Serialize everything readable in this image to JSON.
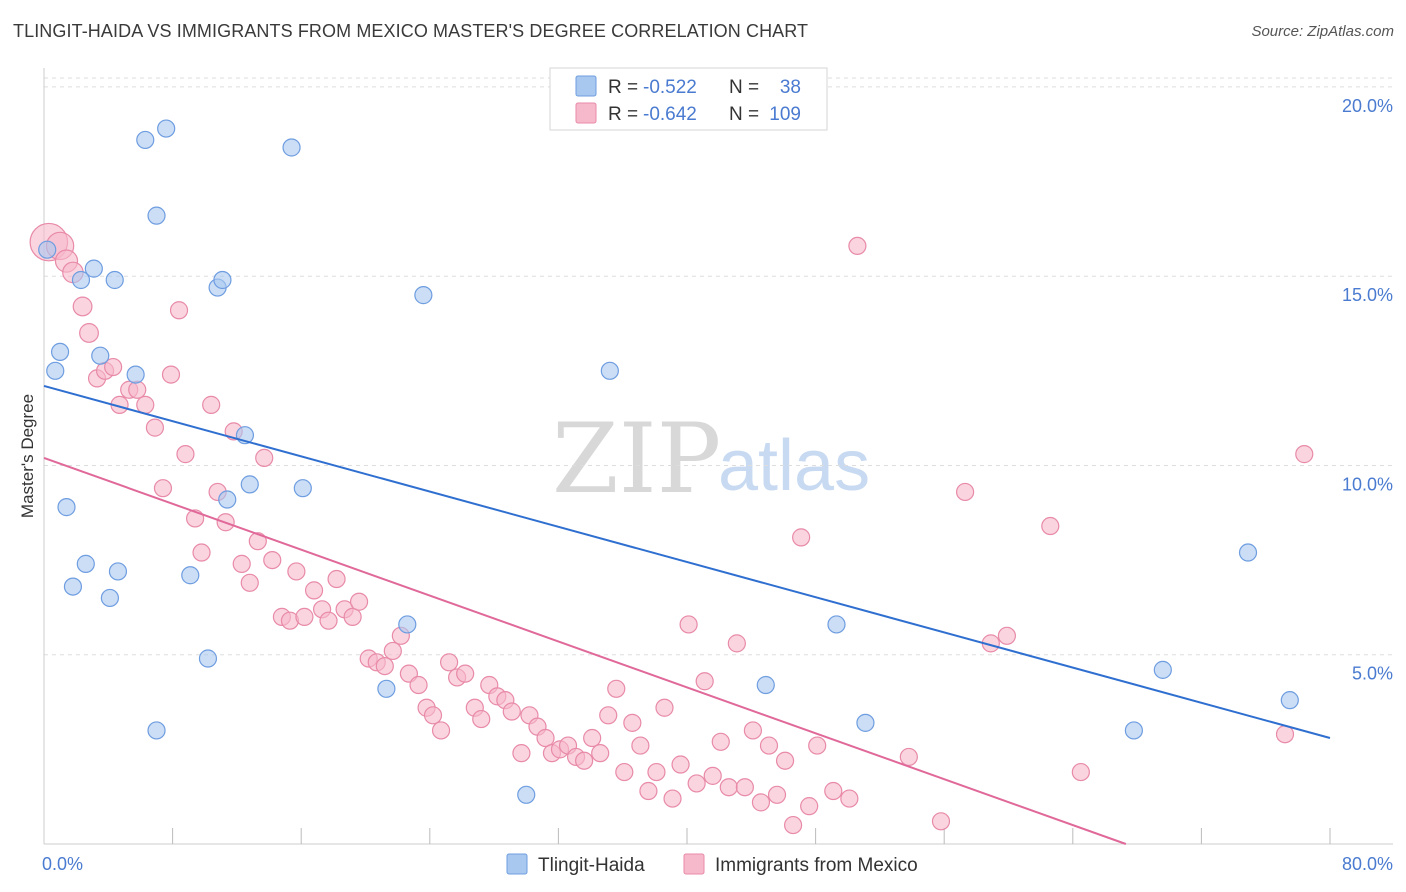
{
  "title": "TLINGIT-HAIDA VS IMMIGRANTS FROM MEXICO MASTER'S DEGREE CORRELATION CHART",
  "source": "Source: ZipAtlas.com",
  "watermark": {
    "zip": "ZIP",
    "atlas": "atlas"
  },
  "colors": {
    "blue_fill": "#a9c8f0",
    "blue_stroke": "#6e9de0",
    "blue_line": "#2f6fd0",
    "pink_fill": "#f6b9cc",
    "pink_stroke": "#e88aa8",
    "pink_line": "#e0699a",
    "accent_text": "#4a7bd0"
  },
  "legend": {
    "rows": [
      {
        "r_label": "R =",
        "r_value": "-0.522",
        "n_label": "N =",
        "n_value": "38",
        "series": "blue"
      },
      {
        "r_label": "R =",
        "r_value": "-0.642",
        "n_label": "N =",
        "n_value": "109",
        "series": "pink"
      }
    ]
  },
  "bottom_legend": [
    "Tlingit-Haida",
    "Immigrants from Mexico"
  ],
  "chart_data": {
    "type": "scatter",
    "xlabel": "",
    "ylabel": "Master's Degree",
    "xlim": [
      0,
      80
    ],
    "ylim": [
      0,
      20.5
    ],
    "x_tick_labels": [
      {
        "value": 0,
        "label": "0.0%"
      },
      {
        "value": 80,
        "label": "80.0%"
      }
    ],
    "y_tick_labels": [
      {
        "value": 5,
        "label": "5.0%"
      },
      {
        "value": 10,
        "label": "10.0%"
      },
      {
        "value": 15,
        "label": "15.0%"
      },
      {
        "value": 20,
        "label": "20.0%"
      }
    ],
    "grid": "horizontal dashed",
    "legend_position": "top-center",
    "series": [
      {
        "name": "Tlingit-Haida",
        "color": "#a9c8f0",
        "trend": {
          "x": [
            0,
            80
          ],
          "y": [
            12.1,
            2.8
          ]
        },
        "points": [
          [
            0.2,
            15.7,
            1.0
          ],
          [
            0.7,
            12.5,
            1.0
          ],
          [
            1.0,
            13.0,
            1.0
          ],
          [
            1.4,
            8.9,
            1.0
          ],
          [
            1.8,
            6.8,
            1.0
          ],
          [
            2.3,
            14.9,
            1.0
          ],
          [
            2.6,
            7.4,
            1.0
          ],
          [
            3.1,
            15.2,
            1.0
          ],
          [
            3.5,
            12.9,
            1.0
          ],
          [
            4.1,
            6.5,
            1.0
          ],
          [
            4.6,
            7.2,
            1.0
          ],
          [
            4.4,
            14.9,
            1.0
          ],
          [
            5.7,
            12.4,
            1.0
          ],
          [
            6.3,
            18.6,
            1.0
          ],
          [
            7.0,
            16.6,
            1.0
          ],
          [
            7.6,
            18.9,
            1.0
          ],
          [
            7.0,
            3.0,
            1.0
          ],
          [
            9.1,
            7.1,
            1.0
          ],
          [
            10.2,
            4.9,
            1.0
          ],
          [
            10.8,
            14.7,
            1.0
          ],
          [
            11.1,
            14.9,
            1.0
          ],
          [
            11.4,
            9.1,
            1.0
          ],
          [
            12.5,
            10.8,
            1.0
          ],
          [
            12.8,
            9.5,
            1.0
          ],
          [
            15.4,
            18.4,
            1.0
          ],
          [
            16.1,
            9.4,
            1.0
          ],
          [
            21.3,
            4.1,
            1.0
          ],
          [
            22.6,
            5.8,
            1.0
          ],
          [
            23.6,
            14.5,
            1.0
          ],
          [
            30.0,
            1.3,
            1.0
          ],
          [
            35.2,
            12.5,
            1.0
          ],
          [
            44.9,
            4.2,
            1.0
          ],
          [
            49.3,
            5.8,
            1.0
          ],
          [
            51.1,
            3.2,
            1.0
          ],
          [
            67.8,
            3.0,
            1.0
          ],
          [
            69.6,
            4.6,
            1.0
          ],
          [
            74.9,
            7.7,
            1.0
          ],
          [
            77.5,
            3.8,
            1.0
          ]
        ]
      },
      {
        "name": "Immigrants from Mexico",
        "color": "#f6b9cc",
        "trend": {
          "x": [
            0,
            67.3
          ],
          "y": [
            10.2,
            0
          ]
        },
        "points": [
          [
            0.3,
            15.9,
            2.2
          ],
          [
            1.0,
            15.8,
            1.6
          ],
          [
            1.4,
            15.4,
            1.3
          ],
          [
            1.8,
            15.1,
            1.2
          ],
          [
            2.4,
            14.2,
            1.1
          ],
          [
            2.8,
            13.5,
            1.1
          ],
          [
            3.3,
            12.3,
            1.0
          ],
          [
            3.8,
            12.5,
            1.0
          ],
          [
            4.3,
            12.6,
            1.0
          ],
          [
            4.7,
            11.6,
            1.0
          ],
          [
            5.3,
            12.0,
            1.0
          ],
          [
            5.8,
            12.0,
            1.0
          ],
          [
            6.3,
            11.6,
            1.0
          ],
          [
            6.9,
            11.0,
            1.0
          ],
          [
            7.4,
            9.4,
            1.0
          ],
          [
            7.9,
            12.4,
            1.0
          ],
          [
            8.4,
            14.1,
            1.0
          ],
          [
            8.8,
            10.3,
            1.0
          ],
          [
            9.4,
            8.6,
            1.0
          ],
          [
            9.8,
            7.7,
            1.0
          ],
          [
            10.4,
            11.6,
            1.0
          ],
          [
            10.8,
            9.3,
            1.0
          ],
          [
            11.3,
            8.5,
            1.0
          ],
          [
            11.8,
            10.9,
            1.0
          ],
          [
            12.3,
            7.4,
            1.0
          ],
          [
            12.8,
            6.9,
            1.0
          ],
          [
            13.3,
            8.0,
            1.0
          ],
          [
            13.7,
            10.2,
            1.0
          ],
          [
            14.2,
            7.5,
            1.0
          ],
          [
            14.8,
            6.0,
            1.0
          ],
          [
            15.3,
            5.9,
            1.0
          ],
          [
            15.7,
            7.2,
            1.0
          ],
          [
            16.2,
            6.0,
            1.0
          ],
          [
            16.8,
            6.7,
            1.0
          ],
          [
            17.3,
            6.2,
            1.0
          ],
          [
            17.7,
            5.9,
            1.0
          ],
          [
            18.2,
            7.0,
            1.0
          ],
          [
            18.7,
            6.2,
            1.0
          ],
          [
            19.2,
            6.0,
            1.0
          ],
          [
            19.6,
            6.4,
            1.0
          ],
          [
            20.2,
            4.9,
            1.0
          ],
          [
            20.7,
            4.8,
            1.0
          ],
          [
            21.2,
            4.7,
            1.0
          ],
          [
            21.7,
            5.1,
            1.0
          ],
          [
            22.2,
            5.5,
            1.0
          ],
          [
            22.7,
            4.5,
            1.0
          ],
          [
            23.3,
            4.2,
            1.0
          ],
          [
            23.8,
            3.6,
            1.0
          ],
          [
            24.2,
            3.4,
            1.0
          ],
          [
            24.7,
            3.0,
            1.0
          ],
          [
            25.2,
            4.8,
            1.0
          ],
          [
            25.7,
            4.4,
            1.0
          ],
          [
            26.2,
            4.5,
            1.0
          ],
          [
            26.8,
            3.6,
            1.0
          ],
          [
            27.2,
            3.3,
            1.0
          ],
          [
            27.7,
            4.2,
            1.0
          ],
          [
            28.2,
            3.9,
            1.0
          ],
          [
            28.7,
            3.8,
            1.0
          ],
          [
            29.1,
            3.5,
            1.0
          ],
          [
            29.7,
            2.4,
            1.0
          ],
          [
            30.2,
            3.4,
            1.0
          ],
          [
            30.7,
            3.1,
            1.0
          ],
          [
            31.2,
            2.8,
            1.0
          ],
          [
            31.6,
            2.4,
            1.0
          ],
          [
            32.1,
            2.5,
            1.0
          ],
          [
            32.6,
            2.6,
            1.0
          ],
          [
            33.1,
            2.3,
            1.0
          ],
          [
            33.6,
            2.2,
            1.0
          ],
          [
            34.1,
            2.8,
            1.0
          ],
          [
            34.6,
            2.4,
            1.0
          ],
          [
            35.1,
            3.4,
            1.0
          ],
          [
            35.6,
            4.1,
            1.0
          ],
          [
            36.1,
            1.9,
            1.0
          ],
          [
            36.6,
            3.2,
            1.0
          ],
          [
            37.1,
            2.6,
            1.0
          ],
          [
            37.6,
            1.4,
            1.0
          ],
          [
            38.1,
            1.9,
            1.0
          ],
          [
            38.6,
            3.6,
            1.0
          ],
          [
            39.1,
            1.2,
            1.0
          ],
          [
            39.6,
            2.1,
            1.0
          ],
          [
            40.1,
            5.8,
            1.0
          ],
          [
            40.6,
            1.6,
            1.0
          ],
          [
            41.1,
            4.3,
            1.0
          ],
          [
            41.6,
            1.8,
            1.0
          ],
          [
            42.1,
            2.7,
            1.0
          ],
          [
            42.6,
            1.5,
            1.0
          ],
          [
            43.1,
            5.3,
            1.0
          ],
          [
            43.6,
            1.5,
            1.0
          ],
          [
            44.1,
            3.0,
            1.0
          ],
          [
            44.6,
            1.1,
            1.0
          ],
          [
            45.1,
            2.6,
            1.0
          ],
          [
            45.6,
            1.3,
            1.0
          ],
          [
            46.1,
            2.2,
            1.0
          ],
          [
            46.6,
            0.5,
            1.0
          ],
          [
            47.1,
            8.1,
            1.0
          ],
          [
            47.6,
            1.0,
            1.0
          ],
          [
            48.1,
            2.6,
            1.0
          ],
          [
            49.1,
            1.4,
            1.0
          ],
          [
            50.1,
            1.2,
            1.0
          ],
          [
            50.6,
            15.8,
            1.0
          ],
          [
            53.8,
            2.3,
            1.0
          ],
          [
            55.8,
            0.6,
            1.0
          ],
          [
            57.3,
            9.3,
            1.0
          ],
          [
            58.9,
            5.3,
            1.0
          ],
          [
            59.9,
            5.5,
            1.0
          ],
          [
            62.6,
            8.4,
            1.0
          ],
          [
            64.5,
            1.9,
            1.0
          ],
          [
            77.2,
            2.9,
            1.0
          ],
          [
            78.4,
            10.3,
            1.0
          ]
        ]
      }
    ]
  }
}
